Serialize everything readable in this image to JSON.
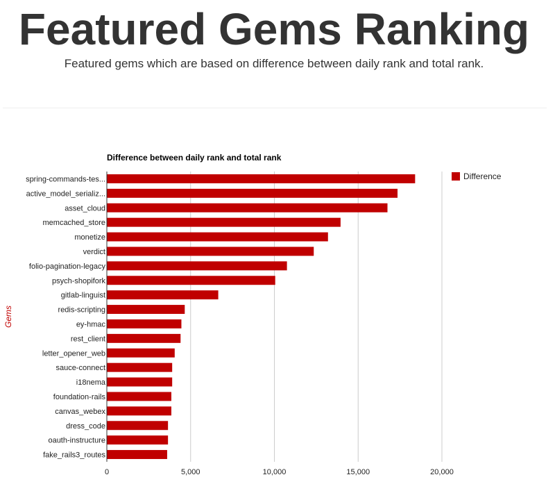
{
  "header": {
    "title": "Featured Gems Ranking",
    "subtitle": "Featured gems which are based on difference between daily rank and total rank."
  },
  "colors": {
    "bar": "#c00000",
    "axis_title": "#c00000",
    "grid": "#cccccc",
    "axis": "#333333"
  },
  "chart_data": {
    "type": "bar",
    "orientation": "horizontal",
    "title": "Difference between daily rank and total rank",
    "ylabel": "Gems",
    "xlabel": "",
    "xlim": [
      0,
      20000
    ],
    "x_ticks": [
      "0",
      "5,000",
      "10,000",
      "15,000",
      "20,000"
    ],
    "grid": true,
    "legend_position": "right",
    "categories": [
      "spring-commands-tes...",
      "active_model_serializ...",
      "asset_cloud",
      "memcached_store",
      "monetize",
      "verdict",
      "folio-pagination-legacy",
      "psych-shopifork",
      "gitlab-linguist",
      "redis-scripting",
      "ey-hmac",
      "rest_client",
      "letter_opener_web",
      "sauce-connect",
      "i18nema",
      "foundation-rails",
      "canvas_webex",
      "dress_code",
      "oauth-instructure",
      "fake_rails3_routes"
    ],
    "series": [
      {
        "name": "Difference",
        "values": [
          18400,
          17350,
          16750,
          13950,
          13200,
          12350,
          10750,
          10050,
          6650,
          4650,
          4450,
          4400,
          4050,
          3900,
          3900,
          3850,
          3850,
          3650,
          3650,
          3600
        ]
      }
    ]
  }
}
